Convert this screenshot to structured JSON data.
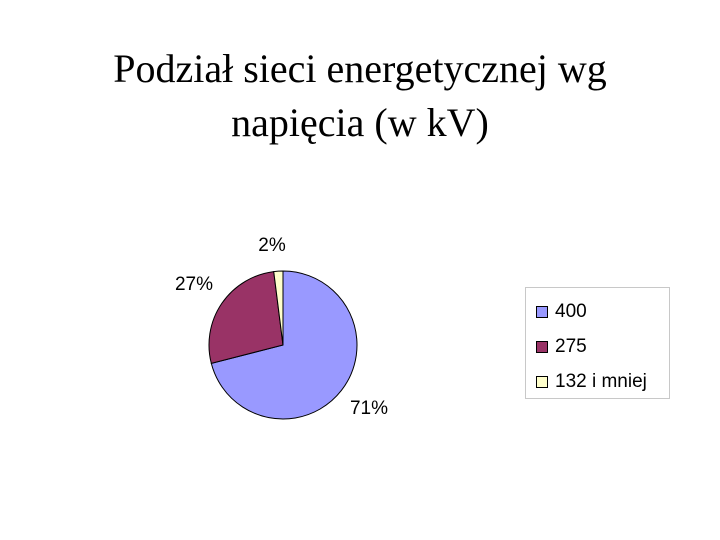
{
  "slide": {
    "title_line1": "Podział sieci energetycznej wg",
    "title_line2": "napięcia (w kV)"
  },
  "chart_data": {
    "type": "pie",
    "title": "Podział sieci energetycznej wg napięcia (w kV)",
    "legend_position": "right",
    "slices": [
      {
        "name": "400",
        "value": 71,
        "label": "71%",
        "color": "#9999ff"
      },
      {
        "name": "275",
        "value": 27,
        "label": "27%",
        "color": "#993366"
      },
      {
        "name": "132 i mniej",
        "value": 2,
        "label": "2%",
        "color": "#ffffcc"
      }
    ]
  }
}
